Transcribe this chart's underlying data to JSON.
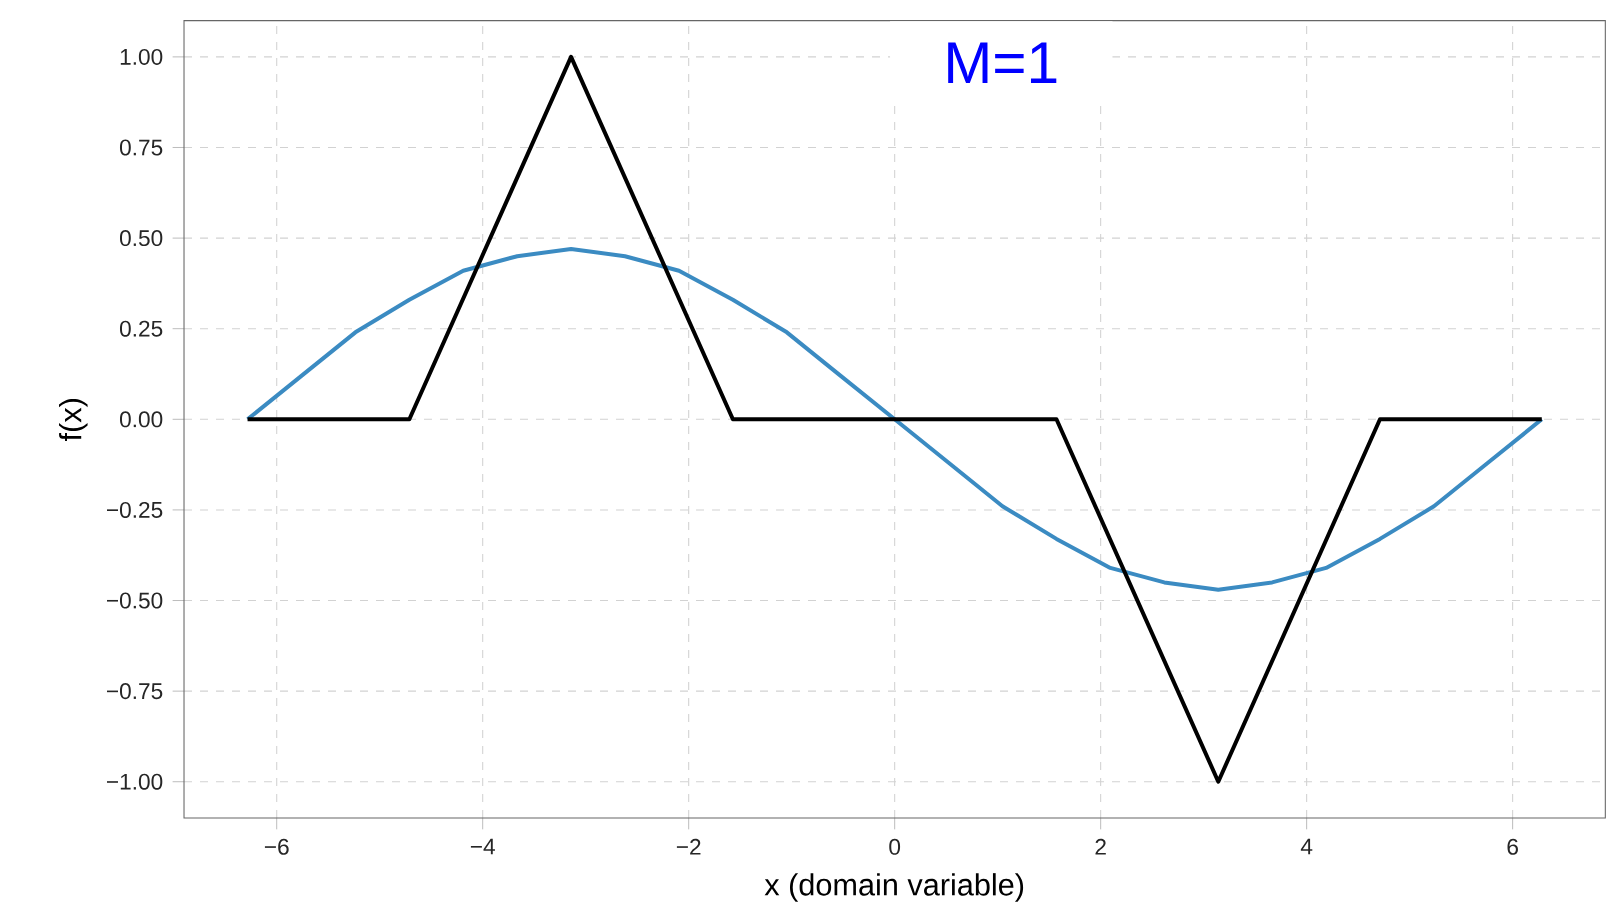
{
  "chart_data": {
    "type": "line",
    "xlabel": "x (domain variable)",
    "ylabel": "f(x)",
    "annotations": [
      "M=1"
    ],
    "xlim": [
      -6.9,
      6.9
    ],
    "ylim": [
      -1.1,
      1.1
    ],
    "xticks": [
      {
        "value": -6,
        "label": "−6"
      },
      {
        "value": -4,
        "label": "−4"
      },
      {
        "value": -2,
        "label": "−2"
      },
      0,
      2,
      4,
      6
    ],
    "yticks": [
      {
        "value": -1,
        "label": "−1.00"
      },
      {
        "value": -0.75,
        "label": "−0.75"
      },
      {
        "value": -0.5,
        "label": "−0.50"
      },
      {
        "value": -0.25,
        "label": "−0.25"
      },
      {
        "value": 0,
        "label": "0.00"
      },
      {
        "value": 0.25,
        "label": "0.25"
      },
      {
        "value": 0.5,
        "label": "0.50"
      },
      {
        "value": 0.75,
        "label": "0.75"
      },
      {
        "value": 1,
        "label": "1.00"
      }
    ],
    "grid": true,
    "series": [
      {
        "color": "#3b8bc2",
        "x": [
          -6.283,
          -5.76,
          -5.236,
          -4.712,
          -4.189,
          -3.665,
          -3.142,
          -2.618,
          -2.094,
          -1.571,
          -1.047,
          -0.524,
          0,
          0.524,
          1.047,
          1.571,
          2.094,
          2.618,
          3.142,
          3.665,
          4.189,
          4.712,
          5.236,
          5.76,
          6.283
        ],
        "values": [
          0,
          0.12,
          0.24,
          0.33,
          0.41,
          0.45,
          0.47,
          0.45,
          0.41,
          0.33,
          0.24,
          0.12,
          0,
          -0.12,
          -0.24,
          -0.33,
          -0.41,
          -0.45,
          -0.47,
          -0.45,
          -0.41,
          -0.33,
          -0.24,
          -0.12,
          0
        ]
      },
      {
        "color": "#000000",
        "x": [
          -6.283,
          -4.712,
          -3.142,
          -1.571,
          1.571,
          3.142,
          4.712,
          6.283
        ],
        "values": [
          0,
          0,
          1,
          0,
          0,
          -1,
          0,
          0
        ]
      }
    ]
  }
}
